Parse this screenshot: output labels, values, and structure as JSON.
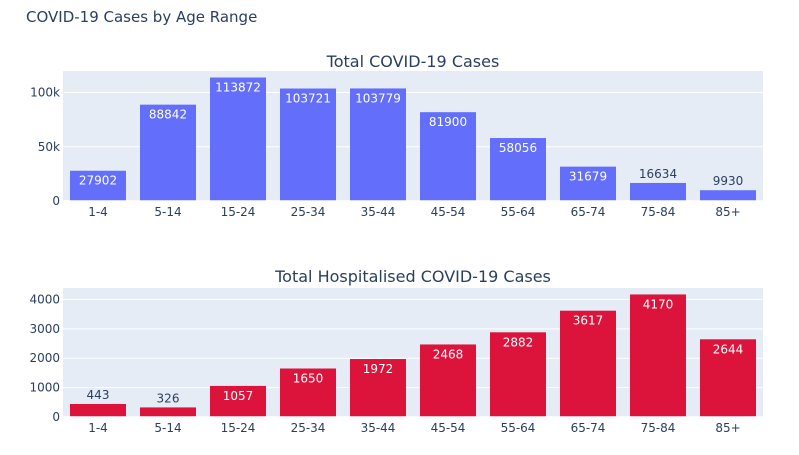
{
  "figure_title": "COVID-19 Cases by Age Range",
  "chart_data": [
    {
      "type": "bar",
      "title": "Total COVID-19 Cases",
      "categories": [
        "1-4",
        "5-14",
        "15-24",
        "25-34",
        "35-44",
        "45-54",
        "55-64",
        "65-74",
        "75-84",
        "85+"
      ],
      "values": [
        27902,
        88842,
        113872,
        103721,
        103779,
        81900,
        58056,
        31679,
        16634,
        9930
      ],
      "yticks": [
        0,
        50000,
        100000
      ],
      "ytick_labels": [
        "0",
        "50k",
        "100k"
      ],
      "ylim": [
        0,
        119865
      ],
      "color": "#636efa",
      "grid": true
    },
    {
      "type": "bar",
      "title": "Total Hospitalised COVID-19 Cases",
      "categories": [
        "1-4",
        "5-14",
        "15-24",
        "25-34",
        "35-44",
        "45-54",
        "55-64",
        "65-74",
        "75-84",
        "85+"
      ],
      "values": [
        443,
        326,
        1057,
        1650,
        1972,
        2468,
        2882,
        3617,
        4170,
        2644
      ],
      "yticks": [
        0,
        1000,
        2000,
        3000,
        4000
      ],
      "ytick_labels": [
        "0",
        "1000",
        "2000",
        "3000",
        "4000"
      ],
      "ylim": [
        0,
        4389
      ],
      "color": "#dc143c",
      "grid": true
    }
  ]
}
